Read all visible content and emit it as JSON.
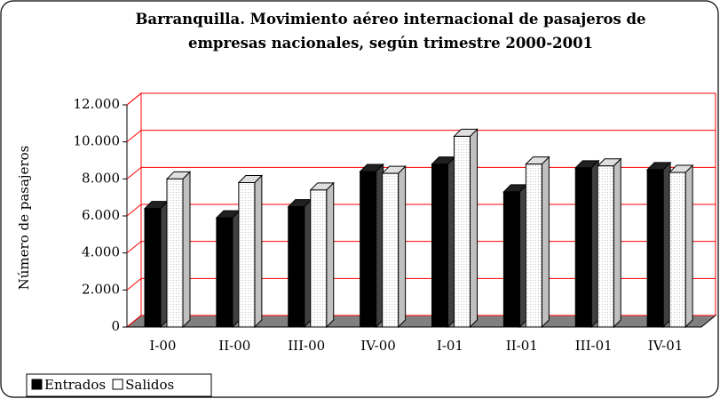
{
  "chart_data": {
    "type": "bar3d",
    "title": "Barranquilla. Movimiento aéreo internacional de pasajeros de empresas nacionales, según trimestre 2000-2001",
    "y_label": "Número de pasajeros",
    "categories": [
      "I-00",
      "II-00",
      "III-00",
      "IV-00",
      "I-01",
      "II-01",
      "III-01",
      "IV-01"
    ],
    "series": [
      {
        "name": "Entrados",
        "color": "#000000",
        "values": [
          6400,
          5900,
          6500,
          8400,
          8800,
          7300,
          8600,
          8500
        ]
      },
      {
        "name": "Salidos",
        "color": "#ffffff",
        "values": [
          8000,
          7800,
          7400,
          8300,
          10300,
          8800,
          8700,
          8350
        ]
      }
    ],
    "ylim": [
      0,
      12000
    ],
    "yticks": [
      0,
      {
        "value": 2000,
        "label": "2.000"
      },
      {
        "value": 4000,
        "label": "4.000"
      },
      {
        "value": 6000,
        "label": "6.000"
      },
      {
        "value": 8000,
        "label": "8.000"
      },
      {
        "value": 10000,
        "label": "10.000"
      },
      {
        "value": 12000,
        "label": "12.000"
      }
    ],
    "grid": true,
    "grid_color": "#ff0000",
    "floor_color": "#808080",
    "legend": "bottom-left"
  }
}
